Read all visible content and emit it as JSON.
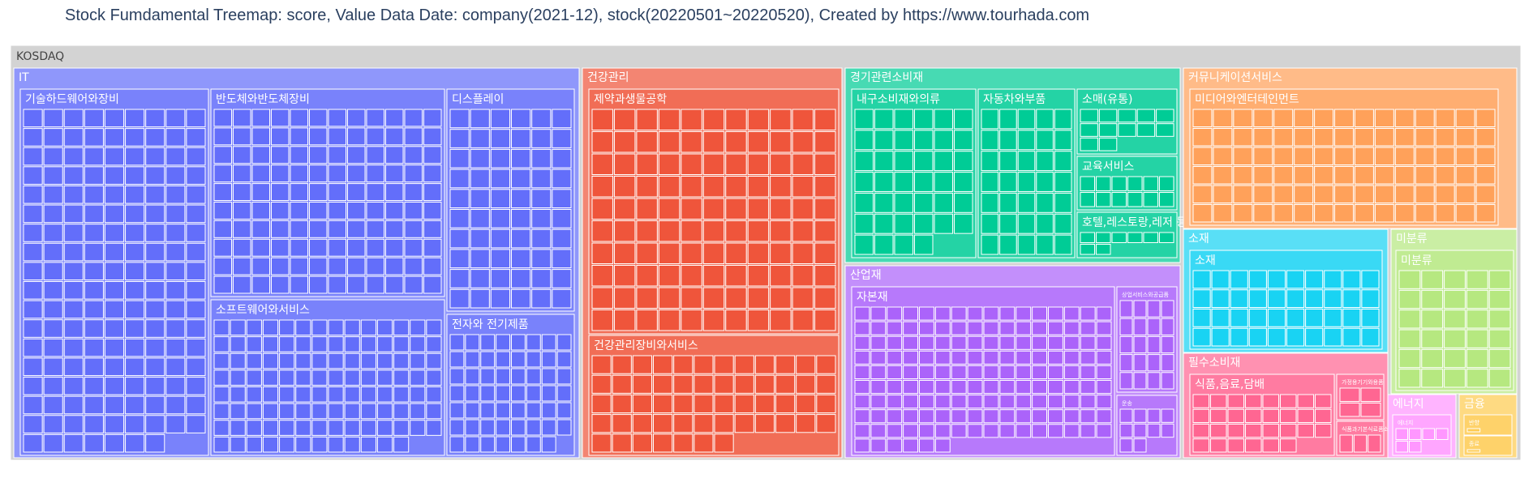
{
  "chart_data": {
    "type": "treemap",
    "title": "Stock Fumdamental Treemap: score, Value Data Date: company(2021-12), stock(20220501~20220520), Created by https://www.tourhada.com",
    "root": "KOSDAQ",
    "colors": {
      "root": "#d3d3d3",
      "IT": "#636efa",
      "건강관리": "#ef553b",
      "경기관련소비재": "#00cc96",
      "산업재": "#ab63fa",
      "커뮤니케이션서비스": "#ffa15a",
      "소재": "#19d3f3",
      "미분류": "#b6e880",
      "필수소비재": "#ff6692",
      "에너지": "#ff97ff",
      "금융": "#fecb52"
    },
    "sectors": [
      {
        "name": "IT",
        "industries": [
          {
            "name": "기술하드웨어와장비",
            "count": 160
          },
          {
            "name": "반도체와반도체장비",
            "count": 120
          },
          {
            "name": "소프트웨어와서비스",
            "count": 110
          },
          {
            "name": "디스플레이",
            "count": 60
          },
          {
            "name": "전자와 전기제품",
            "count": 55
          }
        ]
      },
      {
        "name": "건강관리",
        "industries": [
          {
            "name": "제약과생물공학",
            "count": 110
          },
          {
            "name": "건강관리장비와서비스",
            "count": 55
          }
        ]
      },
      {
        "name": "경기관련소비재",
        "industries": [
          {
            "name": "내구소비재와의류",
            "count": 40
          },
          {
            "name": "자동차와부품",
            "count": 35
          },
          {
            "name": "소매(유통)",
            "count": 12
          },
          {
            "name": "교육서비스",
            "count": 12
          },
          {
            "name": "호텔,레스토랑,레저 등",
            "count": 8
          }
        ]
      },
      {
        "name": "산업재",
        "industries": [
          {
            "name": "자본재",
            "count": 150
          },
          {
            "name": "상업서비스와공급품",
            "count": 20
          },
          {
            "name": "운송",
            "count": 10
          }
        ]
      },
      {
        "name": "커뮤니케이션서비스",
        "industries": [
          {
            "name": "미디어와엔터테인먼트",
            "count": 90
          }
        ]
      },
      {
        "name": "소재",
        "industries": [
          {
            "name": "소재",
            "count": 40
          }
        ]
      },
      {
        "name": "미분류",
        "industries": [
          {
            "name": "미분류",
            "count": 30
          }
        ]
      },
      {
        "name": "필수소비재",
        "industries": [
          {
            "name": "식품,음료,담배",
            "count": 30
          },
          {
            "name": "가정용기기와용품",
            "count": 4
          },
          {
            "name": "식품과기본식료품소매",
            "count": 3
          }
        ]
      },
      {
        "name": "에너지",
        "industries": [
          {
            "name": "에너지",
            "count": 6
          }
        ]
      },
      {
        "name": "금융",
        "industries": [
          {
            "name": "반향",
            "count": 1
          },
          {
            "name": "종료",
            "count": 1
          }
        ]
      }
    ]
  }
}
